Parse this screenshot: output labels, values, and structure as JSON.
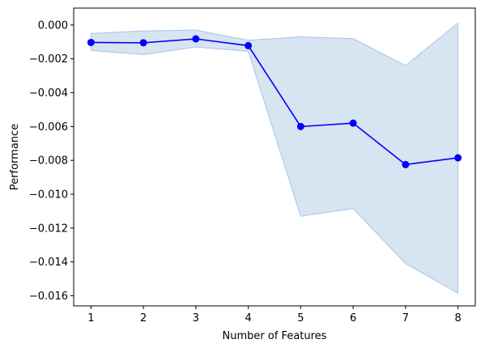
{
  "chart_data": {
    "type": "line",
    "title": "",
    "xlabel": "Number of Features",
    "ylabel": "Performance",
    "x": [
      1,
      2,
      3,
      4,
      5,
      6,
      7,
      8
    ],
    "series": [
      {
        "values": [
          -0.00103,
          -0.00105,
          -0.00082,
          -0.00122,
          -0.006,
          -0.0058,
          -0.00825,
          -0.00785
        ],
        "lower": [
          -0.0015,
          -0.00175,
          -0.0013,
          -0.00155,
          -0.0113,
          -0.01085,
          -0.0141,
          -0.01585
        ],
        "upper": [
          -0.0005,
          -0.00035,
          -0.0003,
          -0.0009,
          -0.0007,
          -0.0008,
          -0.0024,
          0.00012
        ],
        "line_color": "#0000ff",
        "band_color": "#c6d9eb"
      }
    ],
    "xlim": [
      0.67,
      8.33
    ],
    "ylim": [
      -0.0166,
      0.001
    ],
    "xticks": [
      "1",
      "2",
      "3",
      "4",
      "5",
      "6",
      "7",
      "8"
    ],
    "yticks": [
      "−0.016",
      "−0.014",
      "−0.012",
      "−0.010",
      "−0.008",
      "−0.006",
      "−0.004",
      "−0.002",
      "0.000"
    ],
    "ytick_values": [
      -0.016,
      -0.014,
      -0.012,
      -0.01,
      -0.008,
      -0.006,
      -0.004,
      -0.002,
      0.0
    ],
    "grid": false,
    "legend": "none"
  }
}
